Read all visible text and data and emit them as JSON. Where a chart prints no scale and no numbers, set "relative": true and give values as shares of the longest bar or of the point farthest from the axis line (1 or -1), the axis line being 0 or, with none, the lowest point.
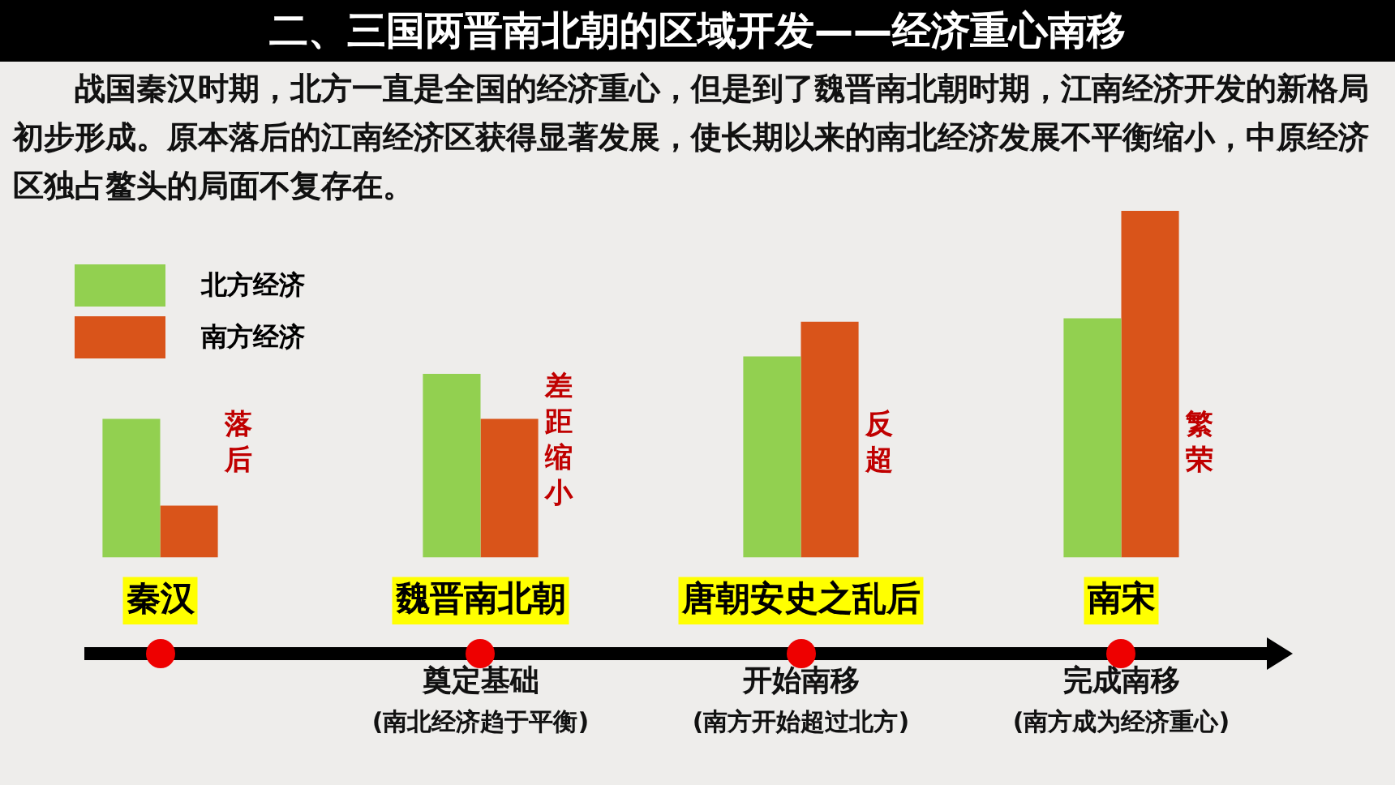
{
  "chart_data": {
    "type": "bar",
    "title": "二、三国两晋南北朝的区域开发——经济重心南移",
    "subtitle": "战国秦汉时期，北方一直是全国的经济重心，但是到了魏晋南北朝时期，江南经济开发的新格局初步形成。原本落后的江南经济区获得显著发展，使长期以来的南北经济发展不平衡缩小，中原经济区独占鳌头的局面不复存在。",
    "categories": [
      "秦汉",
      "魏晋南北朝",
      "唐朝安史之乱后",
      "南宋"
    ],
    "relative": true,
    "grid": false,
    "legend": "top left",
    "series": [
      {
        "name": "北方经济",
        "color": "#92d050",
        "values": [
          0.4,
          0.53,
          0.58,
          0.69
        ]
      },
      {
        "name": "南方经济",
        "color": "#d9541a",
        "values": [
          0.15,
          0.4,
          0.68,
          1
        ]
      }
    ],
    "annotations": [
      {
        "text": "落后",
        "x": "秦汉",
        "y": 0.42
      },
      {
        "text": "差距缩小",
        "x": "魏晋南北朝",
        "y": 0.53
      },
      {
        "text": "反超",
        "x": "唐朝安史之乱后",
        "y": 0.42
      },
      {
        "text": "繁荣",
        "x": "南宋",
        "y": 0.42
      },
      "奠定基础\n(南北经济趋于平衡)",
      "开始南移\n(南方开始超过北方)",
      "完成南移\n(南方成为经济重心)"
    ]
  }
}
